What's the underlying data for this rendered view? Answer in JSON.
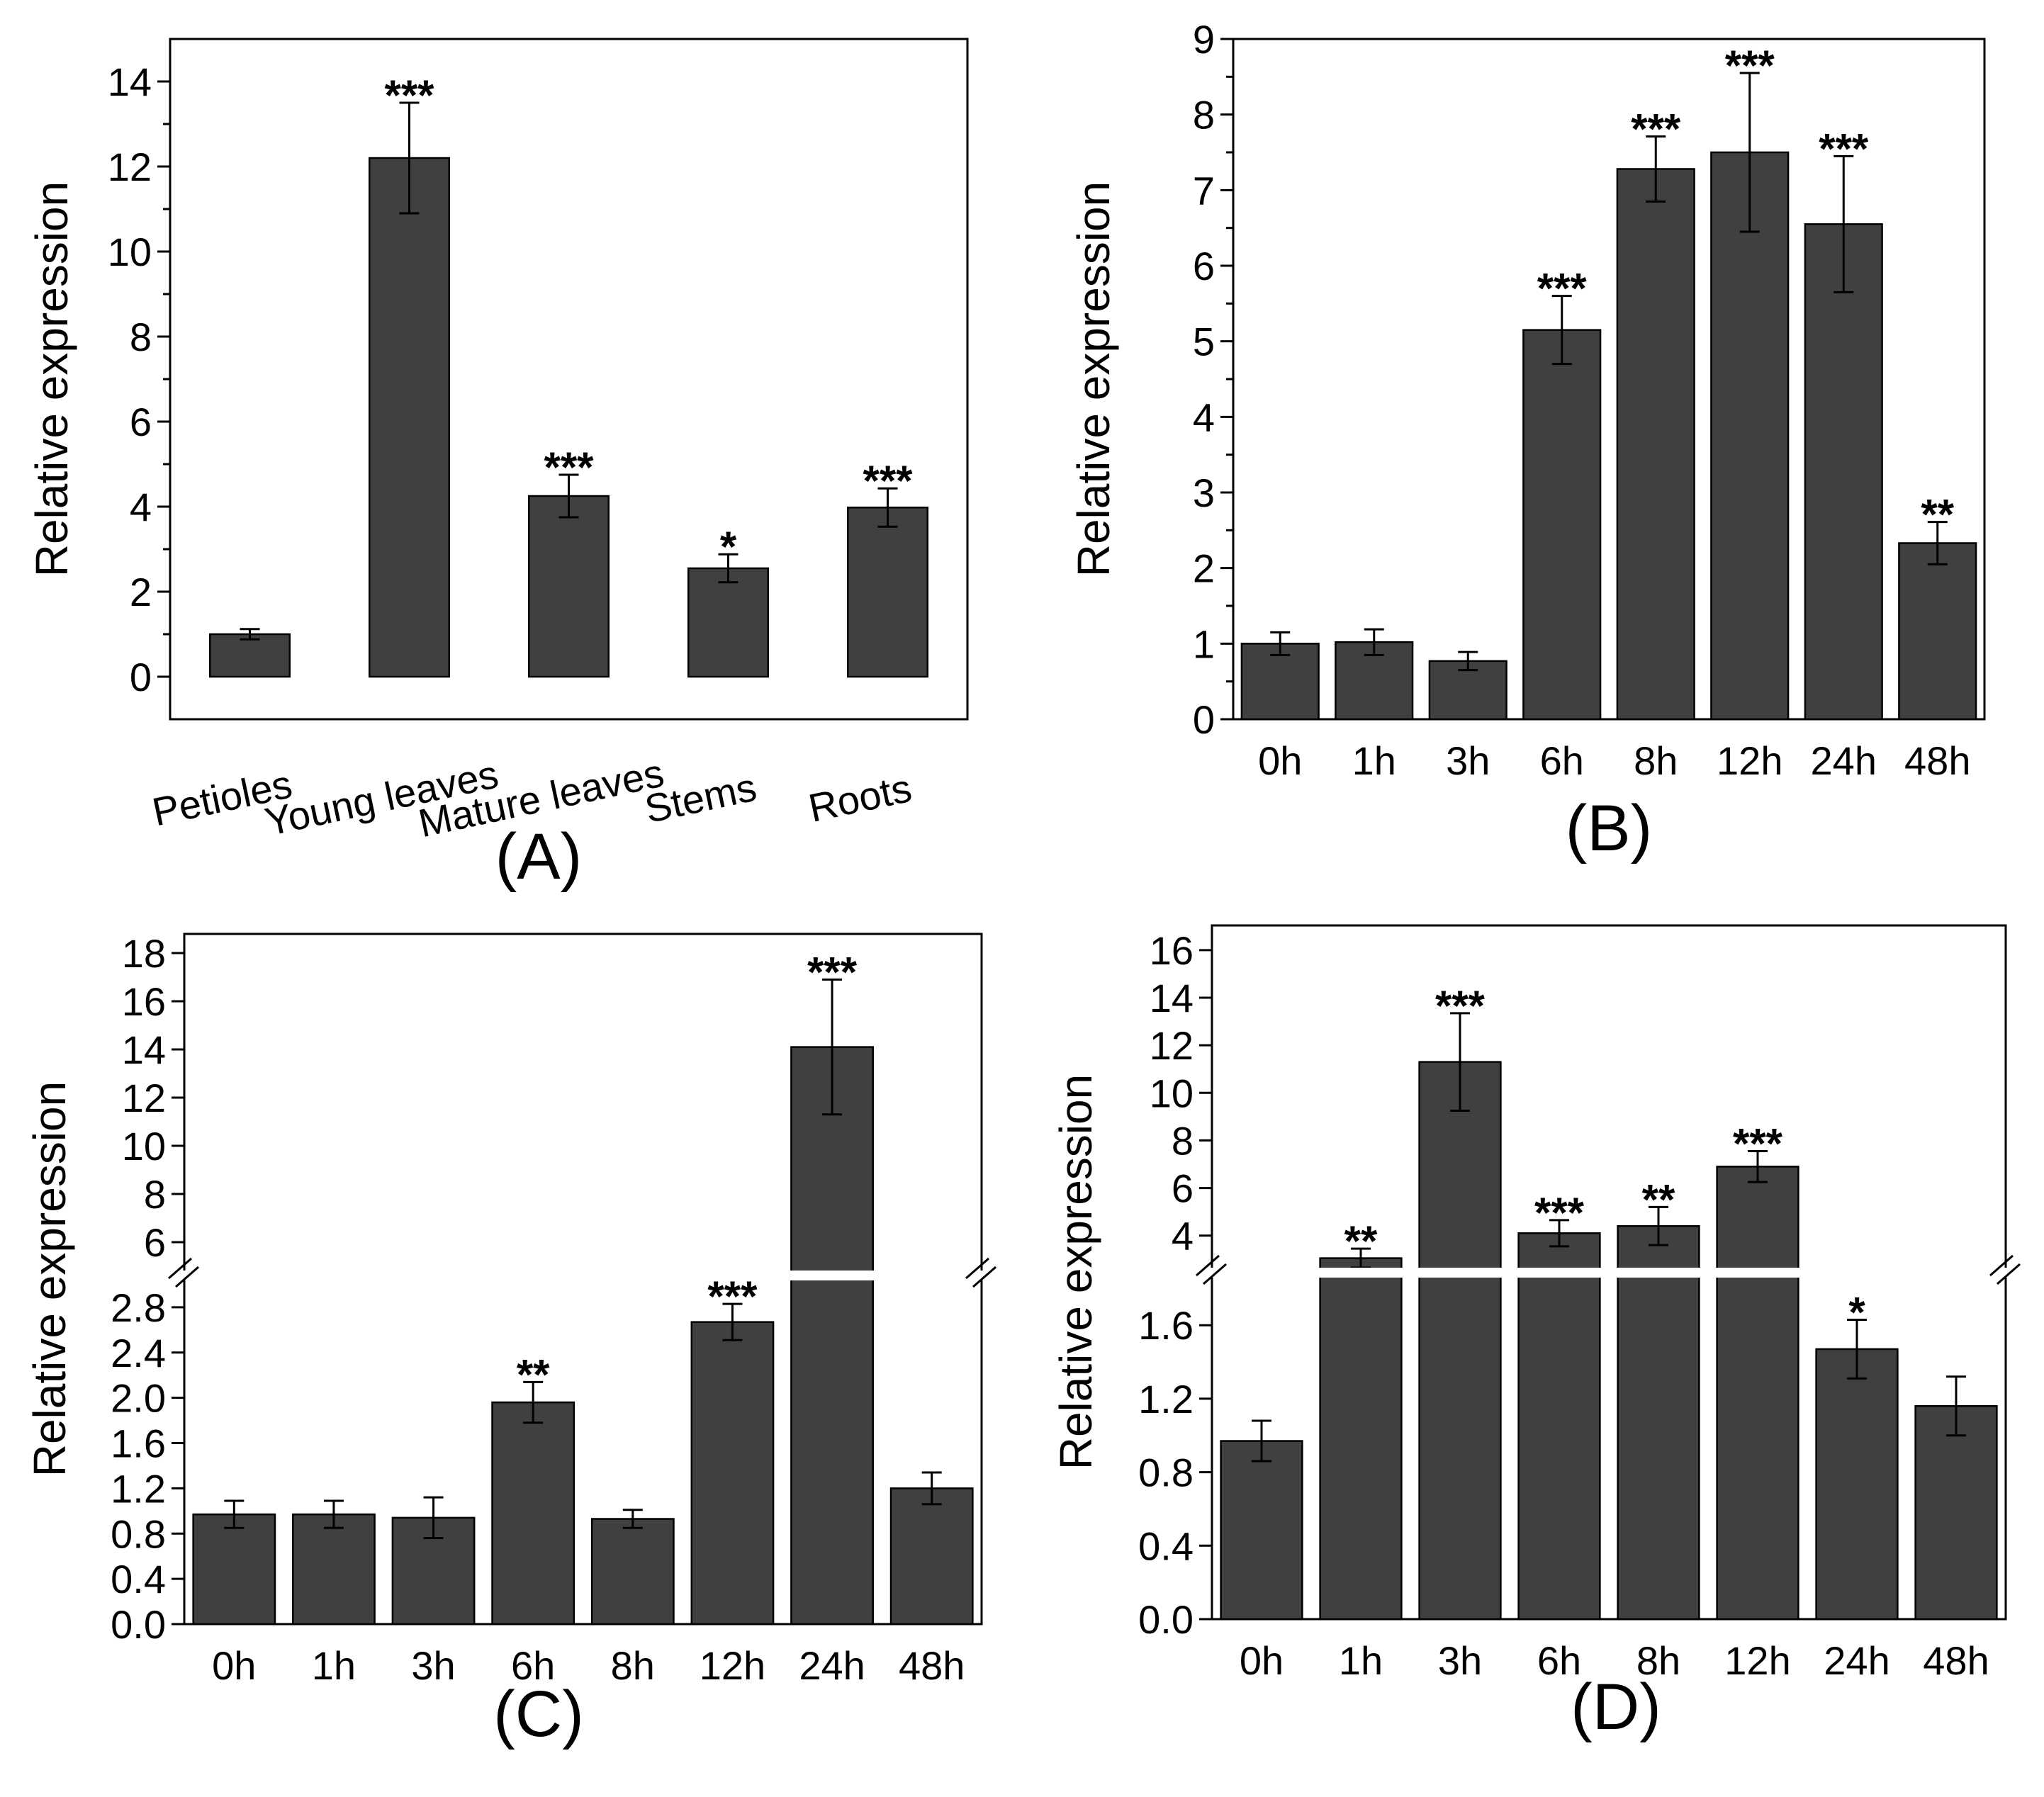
{
  "style": {
    "bar_color": "#404040",
    "axis_color": "#000000",
    "background": "#ffffff"
  },
  "chart_data": [
    {
      "panel": "(A)",
      "type": "bar",
      "ylabel": "Relative expression",
      "ylim": [
        -1,
        15
      ],
      "yticks": [
        0,
        2,
        4,
        6,
        8,
        10,
        12,
        14
      ],
      "categories": [
        "Petioles",
        "Young leaves",
        "Mature leaves",
        "Stems",
        "Roots"
      ],
      "values": [
        1.0,
        12.2,
        4.25,
        2.55,
        3.98
      ],
      "errors": [
        0.12,
        1.3,
        0.5,
        0.33,
        0.45
      ],
      "significance": [
        "",
        "***",
        "***",
        "*",
        "***"
      ],
      "rotated_labels": true
    },
    {
      "panel": "(B)",
      "type": "bar",
      "ylabel": "Relative expression",
      "ylim": [
        0,
        9
      ],
      "yticks": [
        0,
        1,
        2,
        3,
        4,
        5,
        6,
        7,
        8,
        9
      ],
      "categories": [
        "0h",
        "1h",
        "3h",
        "6h",
        "8h",
        "12h",
        "24h",
        "48h"
      ],
      "values": [
        1.0,
        1.02,
        0.77,
        5.15,
        7.28,
        7.5,
        6.55,
        2.33
      ],
      "errors": [
        0.15,
        0.17,
        0.12,
        0.45,
        0.43,
        1.05,
        0.9,
        0.28
      ],
      "significance": [
        "",
        "",
        "",
        "***",
        "***",
        "***",
        "***",
        "**"
      ]
    },
    {
      "panel": "(C)",
      "type": "bar",
      "ylabel": "Relative expression",
      "broken_axis": true,
      "lower_range": [
        0,
        3.0
      ],
      "upper_range": [
        5,
        18.5
      ],
      "lower_ticks": [
        "0.0",
        "0.4",
        "0.8",
        "1.2",
        "1.6",
        "2.0",
        "2.4",
        "2.8"
      ],
      "upper_ticks": [
        "6",
        "8",
        "10",
        "12",
        "14",
        "16",
        "18"
      ],
      "categories": [
        "0h",
        "1h",
        "3h",
        "6h",
        "8h",
        "12h",
        "24h",
        "48h"
      ],
      "values": [
        0.97,
        0.97,
        0.94,
        1.96,
        0.93,
        2.67,
        14.1,
        1.2
      ],
      "errors": [
        0.12,
        0.12,
        0.18,
        0.18,
        0.08,
        0.16,
        2.8,
        0.14
      ],
      "significance": [
        "",
        "",
        "",
        "**",
        "",
        "***",
        "***",
        ""
      ]
    },
    {
      "panel": "(D)",
      "type": "bar",
      "ylabel": "Relative expression",
      "broken_axis": true,
      "lower_range": [
        0,
        1.84
      ],
      "upper_range": [
        2.8,
        16.8
      ],
      "lower_ticks": [
        "0.0",
        "0.4",
        "0.8",
        "1.2",
        "1.6"
      ],
      "upper_ticks": [
        "4",
        "6",
        "8",
        "10",
        "12",
        "14",
        "16"
      ],
      "categories": [
        "0h",
        "1h",
        "3h",
        "6h",
        "8h",
        "12h",
        "24h",
        "48h"
      ],
      "values": [
        0.97,
        3.05,
        11.3,
        4.1,
        4.4,
        6.9,
        1.47,
        1.16
      ],
      "errors": [
        0.11,
        0.4,
        2.05,
        0.55,
        0.8,
        0.65,
        0.16,
        0.16
      ],
      "significance": [
        "",
        "**",
        "***",
        "***",
        "**",
        "***",
        "*",
        ""
      ]
    }
  ]
}
